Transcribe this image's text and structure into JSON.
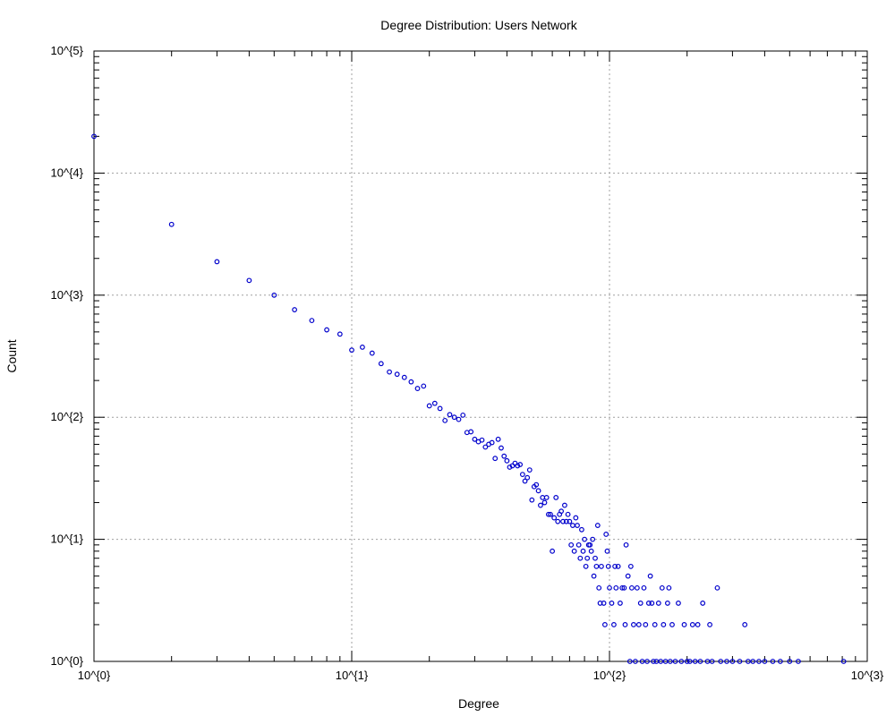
{
  "chart_data": {
    "type": "scatter",
    "title": "Degree Distribution: Users Network",
    "xlabel": "Degree",
    "ylabel": "Count",
    "xscale": "log",
    "yscale": "log",
    "xlim": [
      1,
      1000
    ],
    "ylim": [
      1,
      100000
    ],
    "grid": true,
    "marker_color": "#0000cc",
    "x_tick_labels": [
      "10^{0}",
      "10^{1}",
      "10^{2}",
      "10^{3}"
    ],
    "y_tick_labels": [
      "10^{0}",
      "10^{1}",
      "10^{2}",
      "10^{3}",
      "10^{4}",
      "10^{5}"
    ],
    "series": [
      {
        "points": [
          [
            1,
            20000
          ],
          [
            2,
            3800
          ],
          [
            3,
            1880
          ],
          [
            4,
            1320
          ],
          [
            5,
            1000
          ],
          [
            6,
            760
          ],
          [
            7,
            620
          ],
          [
            8,
            520
          ],
          [
            9,
            480
          ],
          [
            10,
            355
          ],
          [
            11,
            375
          ],
          [
            12,
            335
          ],
          [
            13,
            275
          ],
          [
            14,
            235
          ],
          [
            15,
            225
          ],
          [
            16,
            212
          ],
          [
            17,
            195
          ],
          [
            18,
            172
          ],
          [
            19,
            180
          ],
          [
            20,
            124
          ],
          [
            21,
            130
          ],
          [
            22,
            118
          ],
          [
            23,
            94
          ],
          [
            24,
            105
          ],
          [
            25,
            100
          ],
          [
            26,
            96
          ],
          [
            27,
            104
          ],
          [
            28,
            75
          ],
          [
            29,
            76
          ],
          [
            30,
            66
          ],
          [
            31,
            63
          ],
          [
            32,
            65
          ],
          [
            33,
            57
          ],
          [
            34,
            60
          ],
          [
            35,
            62
          ],
          [
            36,
            46
          ],
          [
            37,
            66
          ],
          [
            38,
            56
          ],
          [
            39,
            48
          ],
          [
            40,
            44
          ],
          [
            41,
            39
          ],
          [
            42,
            40
          ],
          [
            43,
            42
          ],
          [
            44,
            40
          ],
          [
            45,
            41
          ],
          [
            46,
            34
          ],
          [
            47,
            30
          ],
          [
            48,
            32
          ],
          [
            49,
            37
          ],
          [
            50,
            21
          ],
          [
            51,
            27
          ],
          [
            52,
            28
          ],
          [
            53,
            25
          ],
          [
            54,
            19
          ],
          [
            55,
            22
          ],
          [
            56,
            20
          ],
          [
            57,
            22
          ],
          [
            58,
            16
          ],
          [
            59,
            16
          ],
          [
            60,
            8
          ],
          [
            61,
            15
          ],
          [
            62,
            22
          ],
          [
            63,
            14
          ],
          [
            64,
            16
          ],
          [
            65,
            17
          ],
          [
            66,
            14
          ],
          [
            67,
            19
          ],
          [
            68,
            14
          ],
          [
            69,
            16
          ],
          [
            70,
            14
          ],
          [
            71,
            9
          ],
          [
            72,
            13
          ],
          [
            73,
            8
          ],
          [
            74,
            15
          ],
          [
            75,
            13
          ],
          [
            76,
            9
          ],
          [
            77,
            7
          ],
          [
            78,
            12
          ],
          [
            79,
            8
          ],
          [
            80,
            10
          ],
          [
            81,
            6
          ],
          [
            82,
            7
          ],
          [
            83,
            9
          ],
          [
            84,
            9
          ],
          [
            85,
            8
          ],
          [
            86,
            10
          ],
          [
            87,
            5
          ],
          [
            88,
            7
          ],
          [
            89,
            6
          ],
          [
            90,
            13
          ],
          [
            91,
            4
          ],
          [
            92,
            3
          ],
          [
            93,
            6
          ],
          [
            95,
            3
          ],
          [
            96,
            2
          ],
          [
            97,
            11
          ],
          [
            98,
            8
          ],
          [
            99,
            6
          ],
          [
            100,
            4
          ],
          [
            102,
            3
          ],
          [
            104,
            2
          ],
          [
            105,
            6
          ],
          [
            106,
            4
          ],
          [
            108,
            6
          ],
          [
            110,
            3
          ],
          [
            112,
            4
          ],
          [
            114,
            4
          ],
          [
            115,
            2
          ],
          [
            116,
            9
          ],
          [
            118,
            5
          ],
          [
            120,
            1
          ],
          [
            121,
            6
          ],
          [
            122,
            4
          ],
          [
            124,
            2
          ],
          [
            126,
            1
          ],
          [
            128,
            4
          ],
          [
            130,
            2
          ],
          [
            132,
            3
          ],
          [
            134,
            1
          ],
          [
            136,
            4
          ],
          [
            138,
            2
          ],
          [
            140,
            1
          ],
          [
            142,
            3
          ],
          [
            144,
            5
          ],
          [
            146,
            3
          ],
          [
            148,
            1
          ],
          [
            150,
            2
          ],
          [
            152,
            1
          ],
          [
            155,
            3
          ],
          [
            158,
            1
          ],
          [
            160,
            4
          ],
          [
            162,
            2
          ],
          [
            165,
            1
          ],
          [
            168,
            3
          ],
          [
            170,
            4
          ],
          [
            172,
            1
          ],
          [
            175,
            2
          ],
          [
            180,
            1
          ],
          [
            185,
            3
          ],
          [
            190,
            1
          ],
          [
            195,
            2
          ],
          [
            200,
            1
          ],
          [
            205,
            1
          ],
          [
            210,
            2
          ],
          [
            215,
            1
          ],
          [
            220,
            2
          ],
          [
            225,
            1
          ],
          [
            230,
            3
          ],
          [
            240,
            1
          ],
          [
            245,
            2
          ],
          [
            250,
            1
          ],
          [
            262,
            4
          ],
          [
            270,
            1
          ],
          [
            285,
            1
          ],
          [
            300,
            1
          ],
          [
            320,
            1
          ],
          [
            335,
            2
          ],
          [
            345,
            1
          ],
          [
            360,
            1
          ],
          [
            380,
            1
          ],
          [
            400,
            1
          ],
          [
            430,
            1
          ],
          [
            460,
            1
          ],
          [
            500,
            1
          ],
          [
            540,
            1
          ],
          [
            810,
            1
          ]
        ]
      }
    ]
  }
}
